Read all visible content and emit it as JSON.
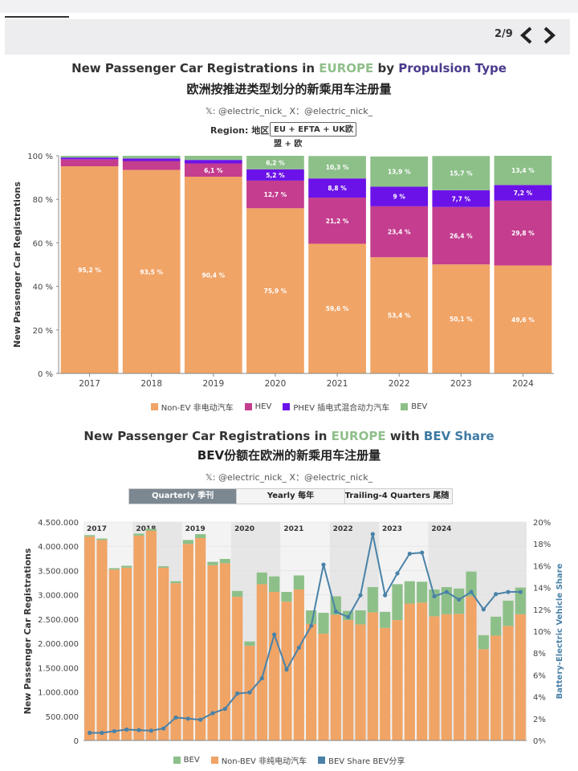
{
  "pager": {
    "label": "2/9"
  },
  "chart1_header": {
    "title_prefix": "New Passenger Car Registrations in ",
    "title_region": "EUROPE",
    "title_mid": " by ",
    "title_topic": "Propulsion Type",
    "subtitle": "欧洲按推进类型划分的新乘用车注册量",
    "credit": "𝕏: @electric_nick_ X：@electric_nick_",
    "region_label": "Region: 地区：",
    "region_value": "EU + EFTA + UK欧盟 + 欧"
  },
  "chart2_header": {
    "title_prefix": "New Passenger Car Registrations in ",
    "title_region": "EUROPE",
    "title_mid": " with ",
    "title_topic": "BEV Share",
    "subtitle": "BEV份额在欧洲的新乘用车注册量",
    "credit": "𝕏: @electric_nick_ X：@electric_nick_",
    "tabs": [
      "Quarterly 季刊",
      "Yearly 每年",
      "Trailing-4 Quarters 尾随 4 个"
    ]
  },
  "colors": {
    "non_ev": "#f0a466",
    "hev": "#c43d8e",
    "phev": "#6b12e8",
    "bev": "#8dc089",
    "bev_share": "#4a82a8"
  },
  "watermark": "知乎 @百年大计",
  "chart_data": [
    {
      "type": "bar",
      "stacked": "percent",
      "categories": [
        "2017",
        "2018",
        "2019",
        "2020",
        "2021",
        "2022",
        "2023",
        "2024"
      ],
      "ylabel": "New Passenger Car Registrations",
      "ylim": [
        0,
        100
      ],
      "yticks": [
        "0 %",
        "20 %",
        "40 %",
        "60 %",
        "80 %",
        "100 %"
      ],
      "series": [
        {
          "name": "Non-EV 非电动汽车",
          "values": [
            95.2,
            93.5,
            90.4,
            75.9,
            59.6,
            53.4,
            50.1,
            49.6
          ],
          "labels": [
            "95,2 %",
            "93,5 %",
            "90,4 %",
            "75,9 %",
            "59,6 %",
            "53,4 %",
            "50,1 %",
            "49,6 %"
          ]
        },
        {
          "name": "HEV",
          "values": [
            3.2,
            4.1,
            6.1,
            12.7,
            21.2,
            23.4,
            26.4,
            29.8
          ],
          "labels": [
            "",
            "",
            "6,1 %",
            "12,7 %",
            "21,2 %",
            "23,4 %",
            "26,4 %",
            "29,8 %"
          ]
        },
        {
          "name": "PHEV 插电式混合动力汽车",
          "values": [
            0.8,
            1.2,
            1.6,
            5.2,
            8.8,
            9.0,
            7.7,
            7.2
          ],
          "labels": [
            "",
            "",
            "",
            "5,2 %",
            "8,8 %",
            "9 %",
            "7,7 %",
            "7,2 %"
          ]
        },
        {
          "name": "BEV",
          "values": [
            0.8,
            1.2,
            1.9,
            6.2,
            10.3,
            13.9,
            15.7,
            13.4
          ],
          "labels": [
            "",
            "",
            "",
            "6,2 %",
            "10,3 %",
            "13,9 %",
            "15,7 %",
            "13,4 %"
          ]
        }
      ]
    },
    {
      "type": "bar",
      "stacked": "absolute",
      "secondary_line": true,
      "ylabel": "New Passenger Car Registrations",
      "y2label": "Battery-Electric Vehicle Share",
      "ylim": [
        0,
        4500000
      ],
      "y2lim": [
        0,
        20
      ],
      "yticks": [
        "0",
        "500.000",
        "1.000.000",
        "1.500.000",
        "2.000.000",
        "2.500.000",
        "3.000.000",
        "3.500.000",
        "4.000.000",
        "4.500.000"
      ],
      "y2ticks": [
        "0%",
        "2%",
        "4%",
        "6%",
        "8%",
        "10%",
        "12%",
        "14%",
        "16%",
        "18%",
        "20%"
      ],
      "year_labels": [
        "2017",
        "2018",
        "2019",
        "2020",
        "2021",
        "2022",
        "2023",
        "2024"
      ],
      "months_per_year": 12,
      "total_months": 36,
      "series": [
        {
          "name": "Non-BEV 非纯电动汽车",
          "values": [
            4200000,
            4130000,
            3520000,
            3560000,
            4220000,
            4320000,
            3560000,
            3240000,
            4050000,
            4170000,
            3610000,
            3650000,
            2960000,
            1950000,
            3220000,
            3060000,
            2860000,
            3110000,
            2400000,
            2200000,
            2590000,
            2480000,
            2390000,
            2640000,
            2320000,
            2480000,
            2820000,
            2840000,
            2560000,
            2600000,
            2610000,
            2970000,
            1880000,
            2160000,
            2360000,
            2600000
          ]
        },
        {
          "name": "BEV",
          "values": [
            30000,
            30000,
            30000,
            40000,
            40000,
            40000,
            30000,
            40000,
            80000,
            80000,
            70000,
            90000,
            120000,
            90000,
            240000,
            320000,
            200000,
            290000,
            280000,
            430000,
            380000,
            190000,
            290000,
            520000,
            330000,
            740000,
            460000,
            430000,
            550000,
            560000,
            520000,
            510000,
            290000,
            390000,
            520000,
            550000
          ]
        },
        {
          "name": "BEV Share BEV分享",
          "values": [
            0.7,
            0.7,
            0.85,
            1.0,
            0.95,
            0.9,
            1.1,
            2.1,
            2.0,
            1.9,
            2.5,
            2.9,
            4.3,
            4.4,
            5.7,
            9.7,
            6.5,
            8.5,
            10.5,
            16.1,
            11.8,
            11.3,
            13.3,
            18.9,
            13.3,
            15.3,
            17.1,
            17.2,
            13.2,
            13.6,
            12.9,
            13.6,
            12.0,
            13.4,
            13.6,
            13.6
          ]
        }
      ]
    }
  ]
}
